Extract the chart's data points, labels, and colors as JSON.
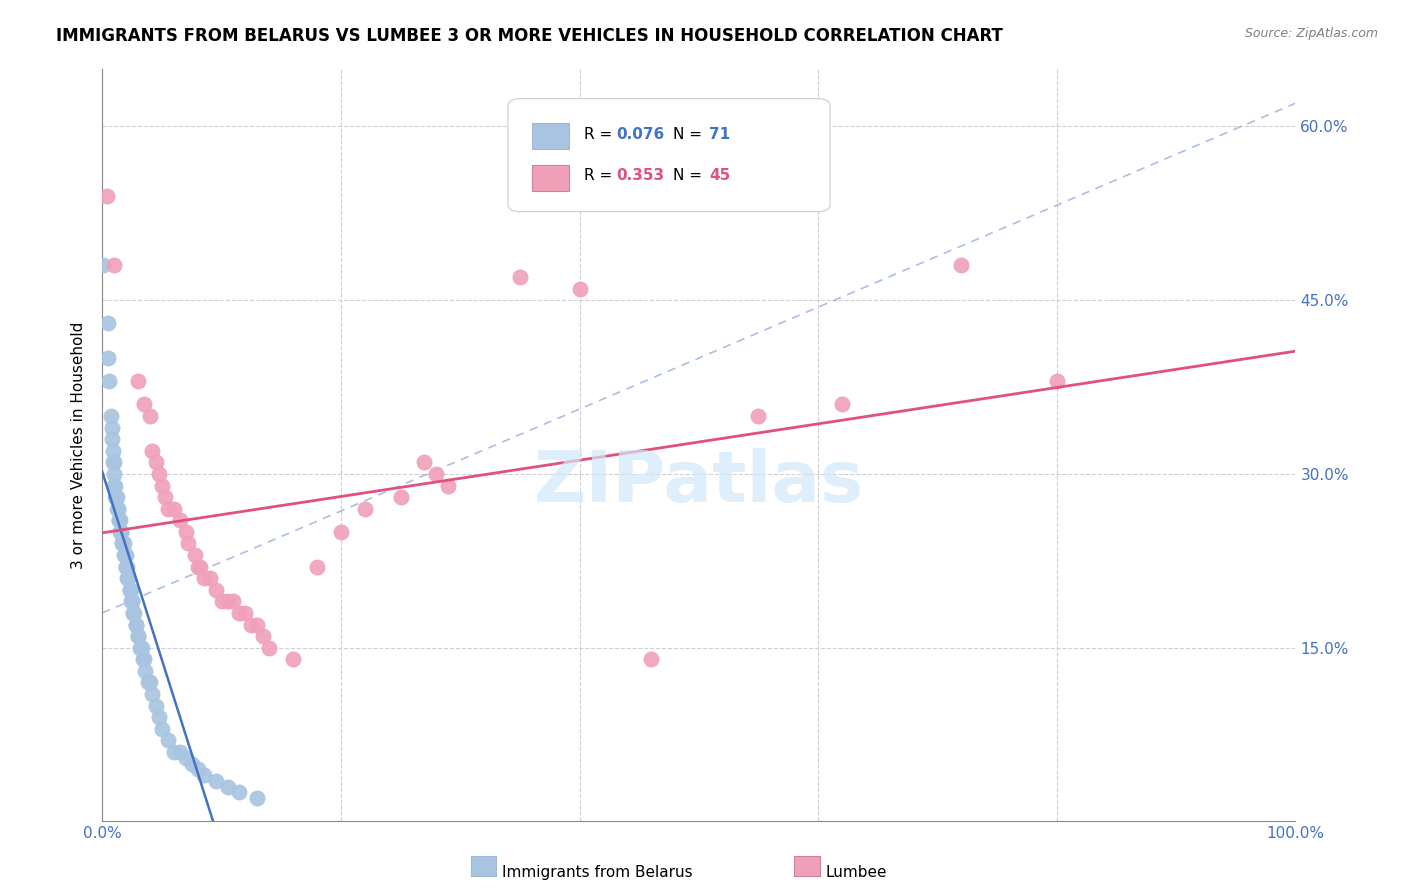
{
  "title": "IMMIGRANTS FROM BELARUS VS LUMBEE 3 OR MORE VEHICLES IN HOUSEHOLD CORRELATION CHART",
  "source": "Source: ZipAtlas.com",
  "ylabel": "3 or more Vehicles in Household",
  "xlim": [
    0.0,
    1.0
  ],
  "ylim": [
    0.0,
    0.65
  ],
  "yticks": [
    0.15,
    0.3,
    0.45,
    0.6
  ],
  "ytick_labels": [
    "15.0%",
    "30.0%",
    "45.0%",
    "60.0%"
  ],
  "blue_color": "#a8c4e0",
  "pink_color": "#f0a0b8",
  "blue_line_color": "#4472c4",
  "pink_line_color": "#e05080",
  "right_label_color": "#4472c4",
  "watermark": "ZIPatlas",
  "watermark_color": "#d0e8f8",
  "blue_scatter": [
    [
      0.001,
      0.48
    ],
    [
      0.005,
      0.43
    ],
    [
      0.005,
      0.4
    ],
    [
      0.006,
      0.38
    ],
    [
      0.007,
      0.35
    ],
    [
      0.008,
      0.34
    ],
    [
      0.008,
      0.33
    ],
    [
      0.009,
      0.32
    ],
    [
      0.009,
      0.31
    ],
    [
      0.01,
      0.31
    ],
    [
      0.01,
      0.3
    ],
    [
      0.01,
      0.29
    ],
    [
      0.011,
      0.29
    ],
    [
      0.011,
      0.28
    ],
    [
      0.012,
      0.28
    ],
    [
      0.012,
      0.27
    ],
    [
      0.013,
      0.27
    ],
    [
      0.013,
      0.27
    ],
    [
      0.014,
      0.26
    ],
    [
      0.014,
      0.26
    ],
    [
      0.015,
      0.26
    ],
    [
      0.015,
      0.25
    ],
    [
      0.016,
      0.25
    ],
    [
      0.016,
      0.25
    ],
    [
      0.017,
      0.24
    ],
    [
      0.017,
      0.24
    ],
    [
      0.018,
      0.24
    ],
    [
      0.018,
      0.23
    ],
    [
      0.019,
      0.23
    ],
    [
      0.02,
      0.23
    ],
    [
      0.02,
      0.22
    ],
    [
      0.02,
      0.22
    ],
    [
      0.021,
      0.22
    ],
    [
      0.021,
      0.21
    ],
    [
      0.022,
      0.21
    ],
    [
      0.022,
      0.21
    ],
    [
      0.023,
      0.2
    ],
    [
      0.023,
      0.2
    ],
    [
      0.024,
      0.2
    ],
    [
      0.024,
      0.19
    ],
    [
      0.025,
      0.19
    ],
    [
      0.025,
      0.19
    ],
    [
      0.026,
      0.18
    ],
    [
      0.026,
      0.18
    ],
    [
      0.027,
      0.18
    ],
    [
      0.028,
      0.17
    ],
    [
      0.028,
      0.17
    ],
    [
      0.03,
      0.16
    ],
    [
      0.03,
      0.16
    ],
    [
      0.032,
      0.15
    ],
    [
      0.033,
      0.15
    ],
    [
      0.034,
      0.14
    ],
    [
      0.035,
      0.14
    ],
    [
      0.036,
      0.13
    ],
    [
      0.038,
      0.12
    ],
    [
      0.04,
      0.12
    ],
    [
      0.042,
      0.11
    ],
    [
      0.045,
      0.1
    ],
    [
      0.048,
      0.09
    ],
    [
      0.05,
      0.08
    ],
    [
      0.055,
      0.07
    ],
    [
      0.06,
      0.06
    ],
    [
      0.065,
      0.06
    ],
    [
      0.07,
      0.055
    ],
    [
      0.075,
      0.05
    ],
    [
      0.08,
      0.045
    ],
    [
      0.085,
      0.04
    ],
    [
      0.095,
      0.035
    ],
    [
      0.105,
      0.03
    ],
    [
      0.115,
      0.025
    ],
    [
      0.13,
      0.02
    ]
  ],
  "pink_scatter": [
    [
      0.004,
      0.54
    ],
    [
      0.01,
      0.48
    ],
    [
      0.03,
      0.38
    ],
    [
      0.035,
      0.36
    ],
    [
      0.04,
      0.35
    ],
    [
      0.042,
      0.32
    ],
    [
      0.045,
      0.31
    ],
    [
      0.048,
      0.3
    ],
    [
      0.05,
      0.29
    ],
    [
      0.053,
      0.28
    ],
    [
      0.055,
      0.27
    ],
    [
      0.06,
      0.27
    ],
    [
      0.065,
      0.26
    ],
    [
      0.07,
      0.25
    ],
    [
      0.072,
      0.24
    ],
    [
      0.078,
      0.23
    ],
    [
      0.08,
      0.22
    ],
    [
      0.082,
      0.22
    ],
    [
      0.085,
      0.21
    ],
    [
      0.09,
      0.21
    ],
    [
      0.095,
      0.2
    ],
    [
      0.1,
      0.19
    ],
    [
      0.105,
      0.19
    ],
    [
      0.11,
      0.19
    ],
    [
      0.115,
      0.18
    ],
    [
      0.12,
      0.18
    ],
    [
      0.125,
      0.17
    ],
    [
      0.13,
      0.17
    ],
    [
      0.135,
      0.16
    ],
    [
      0.14,
      0.15
    ],
    [
      0.16,
      0.14
    ],
    [
      0.18,
      0.22
    ],
    [
      0.2,
      0.25
    ],
    [
      0.22,
      0.27
    ],
    [
      0.25,
      0.28
    ],
    [
      0.27,
      0.31
    ],
    [
      0.28,
      0.3
    ],
    [
      0.29,
      0.29
    ],
    [
      0.35,
      0.47
    ],
    [
      0.4,
      0.46
    ],
    [
      0.46,
      0.14
    ],
    [
      0.55,
      0.35
    ],
    [
      0.62,
      0.36
    ],
    [
      0.72,
      0.48
    ],
    [
      0.8,
      0.38
    ]
  ]
}
